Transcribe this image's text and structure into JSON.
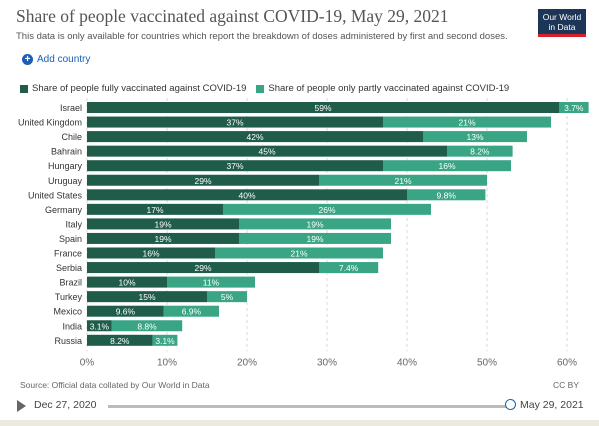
{
  "header": {
    "title": "Share of people vaccinated against COVID-19, May 29, 2021",
    "subtitle": "This data is only available for countries which report the breakdown of doses administered by first and second doses.",
    "logo_line1": "Our World",
    "logo_line2": "in Data",
    "add_country": "Add country"
  },
  "colors": {
    "full": "#1f5c4a",
    "partial": "#3aa585"
  },
  "chart_data": {
    "type": "bar",
    "orientation": "horizontal",
    "stacked": true,
    "categories": [
      "Israel",
      "United Kingdom",
      "Chile",
      "Bahrain",
      "Hungary",
      "Uruguay",
      "United States",
      "Germany",
      "Italy",
      "Spain",
      "France",
      "Serbia",
      "Brazil",
      "Turkey",
      "Mexico",
      "India",
      "Russia"
    ],
    "series": [
      {
        "name": "Share of people fully vaccinated against COVID-19",
        "values": [
          59,
          37,
          42,
          45,
          37,
          29,
          40,
          17,
          19,
          19,
          16,
          29,
          10,
          15,
          9.6,
          3.1,
          8.2
        ],
        "labels": [
          "59%",
          "37%",
          "42%",
          "45%",
          "37%",
          "29%",
          "40%",
          "17%",
          "19%",
          "19%",
          "16%",
          "29%",
          "10%",
          "15%",
          "9.6%",
          "3.1%",
          "8.2%"
        ]
      },
      {
        "name": "Share of people only partly vaccinated against COVID-19",
        "values": [
          3.7,
          21,
          13,
          8.2,
          16,
          21,
          9.8,
          26,
          19,
          19,
          21,
          7.4,
          11,
          5,
          6.9,
          8.8,
          3.1
        ],
        "labels": [
          "3.7%",
          "21%",
          "13%",
          "8.2%",
          "16%",
          "21%",
          "9.8%",
          "26%",
          "19%",
          "19%",
          "21%",
          "7.4%",
          "11%",
          "5%",
          "6.9%",
          "8.8%",
          "3.1%"
        ]
      }
    ],
    "xlim": [
      0,
      62
    ],
    "xticks": [
      0,
      10,
      20,
      30,
      40,
      50,
      60
    ],
    "xtick_labels": [
      "0%",
      "10%",
      "20%",
      "30%",
      "40%",
      "50%",
      "60%"
    ],
    "grid": true,
    "legend_position": "top-left"
  },
  "footer": {
    "source": "Source: Official data collated by Our World in Data",
    "license": "CC BY"
  },
  "timeline": {
    "start_date": "Dec 27, 2020",
    "end_date": "May 29, 2021",
    "position": 1.0
  }
}
